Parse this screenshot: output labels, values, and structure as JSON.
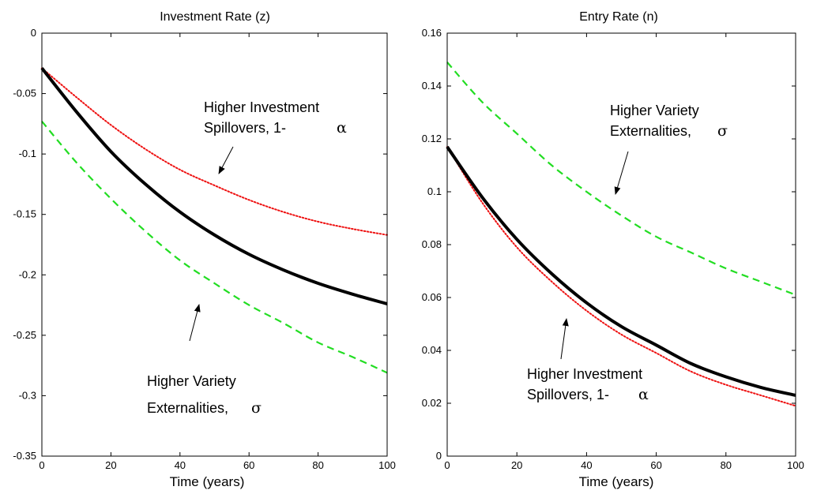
{
  "chart_data": [
    {
      "type": "line",
      "title": "Investment Rate (z)",
      "xlabel": "Time (years)",
      "ylabel": "",
      "xlim": [
        0,
        100
      ],
      "ylim": [
        -0.35,
        0
      ],
      "xticks": [
        0,
        20,
        40,
        60,
        80,
        100
      ],
      "xtick_labels": [
        "0",
        "20",
        "40",
        "60",
        "80",
        "100"
      ],
      "yticks": [
        -0.35,
        -0.3,
        -0.25,
        -0.2,
        -0.15,
        -0.1,
        -0.05,
        0
      ],
      "ytick_labels": [
        "-0.35",
        "-0.3",
        "-0.25",
        "-0.2",
        "-0.15",
        "-0.1",
        "-0.05",
        "0"
      ],
      "grid": false,
      "x": [
        0,
        10,
        20,
        30,
        40,
        50,
        60,
        70,
        80,
        90,
        100
      ],
      "series": [
        {
          "color": "#000000",
          "style": "solid",
          "values": [
            -0.029,
            -0.065,
            -0.098,
            -0.125,
            -0.148,
            -0.167,
            -0.183,
            -0.196,
            -0.207,
            -0.216,
            -0.224
          ]
        },
        {
          "color": "#ee1111",
          "style": "dotted",
          "values": [
            -0.029,
            -0.053,
            -0.076,
            -0.096,
            -0.113,
            -0.126,
            -0.138,
            -0.148,
            -0.156,
            -0.162,
            -0.167
          ]
        },
        {
          "color": "#22dd22",
          "style": "dashed",
          "values": [
            -0.073,
            -0.107,
            -0.137,
            -0.164,
            -0.188,
            -0.207,
            -0.225,
            -0.24,
            -0.256,
            -0.268,
            -0.281
          ]
        }
      ],
      "annotations": [
        {
          "line1": "Higher Investment",
          "line2": "Spillovers, 1-",
          "symbol": "α"
        },
        {
          "line1": "Higher Variety",
          "line2": "Externalities,",
          "symbol": "σ"
        }
      ]
    },
    {
      "type": "line",
      "title": "Entry Rate (n)",
      "xlabel": "Time (years)",
      "ylabel": "",
      "xlim": [
        0,
        100
      ],
      "ylim": [
        0,
        0.16
      ],
      "xticks": [
        0,
        20,
        40,
        60,
        80,
        100
      ],
      "xtick_labels": [
        "0",
        "20",
        "40",
        "60",
        "80",
        "100"
      ],
      "yticks": [
        0,
        0.02,
        0.04,
        0.06,
        0.08,
        0.1,
        0.12,
        0.14,
        0.16
      ],
      "ytick_labels": [
        "0",
        "0.02",
        "0.04",
        "0.06",
        "0.08",
        "0.1",
        "0.12",
        "0.14",
        "0.16"
      ],
      "grid": false,
      "x": [
        0,
        10,
        20,
        30,
        40,
        50,
        60,
        70,
        80,
        90,
        100
      ],
      "series": [
        {
          "color": "#000000",
          "style": "solid",
          "values": [
            0.117,
            0.098,
            0.082,
            0.069,
            0.058,
            0.049,
            0.042,
            0.035,
            0.03,
            0.026,
            0.023
          ]
        },
        {
          "color": "#ee1111",
          "style": "dotted",
          "values": [
            0.117,
            0.096,
            0.079,
            0.066,
            0.055,
            0.046,
            0.039,
            0.032,
            0.027,
            0.023,
            0.019
          ]
        },
        {
          "color": "#22dd22",
          "style": "dashed",
          "values": [
            0.149,
            0.134,
            0.122,
            0.11,
            0.1,
            0.091,
            0.083,
            0.077,
            0.071,
            0.066,
            0.061
          ]
        }
      ],
      "annotations": [
        {
          "line1": "Higher Variety",
          "line2": "Externalities,",
          "symbol": "σ"
        },
        {
          "line1": "Higher Investment",
          "line2": "Spillovers, 1-",
          "symbol": "α"
        }
      ]
    }
  ]
}
